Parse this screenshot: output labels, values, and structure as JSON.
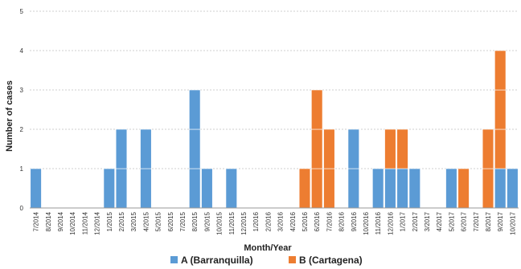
{
  "chart_data": {
    "type": "bar",
    "stacked": true,
    "title": "",
    "xlabel": "Month/Year",
    "ylabel": "Number of cases",
    "ylim": [
      0,
      5
    ],
    "yticks": [
      0,
      1,
      2,
      3,
      4,
      5
    ],
    "grid": true,
    "legend_position": "bottom",
    "categories": [
      "7/2014",
      "8/2014",
      "9/2014",
      "10/2014",
      "11/2014",
      "12/2014",
      "1/2015",
      "2/2015",
      "3/2015",
      "4/2015",
      "5/2015",
      "6/2015",
      "7/2015",
      "8/2015",
      "9/2015",
      "10/2015",
      "11/2015",
      "12/2015",
      "1/2016",
      "2/2016",
      "3/2016",
      "4/2016",
      "5/2016",
      "6/2016",
      "7/2016",
      "8/2016",
      "9/2016",
      "10/2016",
      "11/2016",
      "12/2016",
      "1/2017",
      "2/2017",
      "3/2017",
      "4/2017",
      "5/2017",
      "6/2017",
      "7/2017",
      "8/2017",
      "9/2017",
      "10/2017"
    ],
    "series": [
      {
        "name": "A (Barranquilla)",
        "color": "#5b9bd5",
        "values": [
          1,
          0,
          0,
          0,
          0,
          0,
          1,
          2,
          0,
          2,
          0,
          0,
          0,
          3,
          1,
          0,
          1,
          0,
          0,
          0,
          0,
          0,
          0,
          0,
          0,
          0,
          2,
          0,
          1,
          1,
          1,
          1,
          0,
          0,
          1,
          0,
          0,
          0,
          1,
          1
        ]
      },
      {
        "name": "B (Cartagena)",
        "color": "#ed7d31",
        "values": [
          0,
          0,
          0,
          0,
          0,
          0,
          0,
          0,
          0,
          0,
          0,
          0,
          0,
          0,
          0,
          0,
          0,
          0,
          0,
          0,
          0,
          0,
          1,
          3,
          2,
          0,
          0,
          0,
          0,
          1,
          1,
          0,
          0,
          0,
          0,
          1,
          0,
          2,
          3,
          0
        ]
      }
    ]
  }
}
